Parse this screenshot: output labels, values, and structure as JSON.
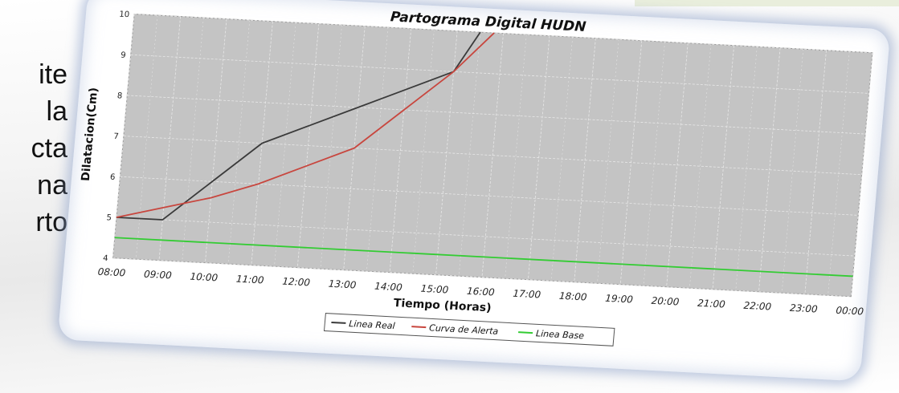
{
  "slide_text": [
    "ite",
    "la",
    "cta",
    "na",
    "rto"
  ],
  "colors": {
    "plot_bg": "#c4c4c4",
    "grid": "#e8e8e8",
    "real": "#3a3a3a",
    "alerta": "#c8463e",
    "base": "#33cc33"
  },
  "chart_data": {
    "type": "line",
    "title": "Partograma Digital HUDN",
    "xlabel": "Tiempo (Horas)",
    "ylabel": "Dilatacion(Cm)",
    "categories": [
      "08:00",
      "09:00",
      "10:00",
      "11:00",
      "12:00",
      "13:00",
      "14:00",
      "15:00",
      "16:00",
      "17:00",
      "18:00",
      "19:00",
      "20:00",
      "21:00",
      "22:00",
      "23:00",
      "00:00"
    ],
    "xlim": [
      8,
      24
    ],
    "ylim": [
      4,
      10
    ],
    "yticks": [
      "4",
      "5",
      "6",
      "7",
      "8",
      "9",
      "10"
    ],
    "grid": true,
    "legend_position": "bottom",
    "series": [
      {
        "name": "Linea Real",
        "color_key": "real",
        "points": [
          [
            8.0,
            5.0
          ],
          [
            9.0,
            5.0
          ],
          [
            10.0,
            6.0
          ],
          [
            11.0,
            7.0
          ],
          [
            12.0,
            7.5
          ],
          [
            13.0,
            8.0
          ],
          [
            14.0,
            8.5
          ],
          [
            15.0,
            9.0
          ],
          [
            15.5,
            10.0
          ]
        ]
      },
      {
        "name": "Curva de Alerta",
        "color_key": "alerta",
        "points": [
          [
            8.0,
            5.0
          ],
          [
            9.0,
            5.3
          ],
          [
            10.0,
            5.6
          ],
          [
            11.0,
            6.0
          ],
          [
            12.0,
            6.5
          ],
          [
            13.0,
            7.0
          ],
          [
            14.0,
            8.0
          ],
          [
            15.0,
            9.0
          ],
          [
            15.8,
            10.0
          ]
        ]
      },
      {
        "name": "Linea Base",
        "color_key": "base",
        "points": [
          [
            8.0,
            4.5
          ],
          [
            24.0,
            4.5
          ]
        ]
      }
    ]
  }
}
